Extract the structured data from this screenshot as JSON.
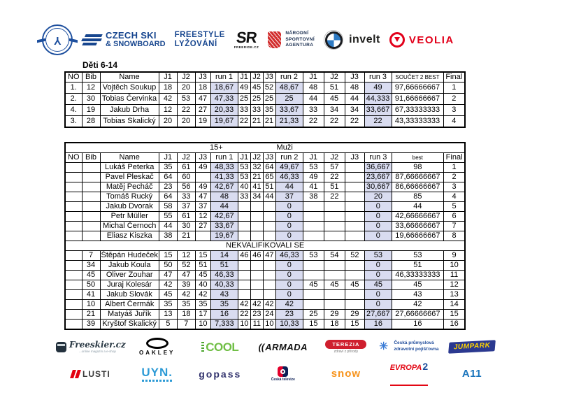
{
  "colors": {
    "highlight": "#d9dcf0",
    "navy": "#17468f",
    "veolia_red": "#e2001a"
  },
  "top": {
    "czech_ski": {
      "line1": "CZECH SKI",
      "line2": "& SNOWBOARD"
    },
    "freestyle": {
      "line1": "FREESTYLE",
      "line2": "LYŽOVÁNÍ"
    },
    "sr": {
      "text": "SR",
      "sub": "FREERIDE.CZ"
    },
    "nsa": {
      "line1": "NÁRODNÍ",
      "line2": "SPORTOVNÍ",
      "line3": "AGENTURA"
    },
    "invelt": {
      "text": "invelt"
    },
    "veolia": {
      "text": "VEOLIA"
    }
  },
  "table1": {
    "title": "Děti 6-14",
    "headers": [
      "NO",
      "Bib",
      "Name",
      "J1",
      "J2",
      "J3",
      "run 1",
      "J1",
      "J2",
      "J3",
      "run 2",
      "J1",
      "J2",
      "J3",
      "run 3",
      "SOUČET 2 BEST",
      "Final"
    ],
    "rows": [
      [
        "1.",
        "12",
        "Vojtěch Soukup",
        "18",
        "20",
        "18",
        "18,67",
        "49",
        "45",
        "52",
        "48,67",
        "48",
        "51",
        "48",
        "49",
        "97,66666667",
        "1"
      ],
      [
        "2.",
        "30",
        "Tobias Červinka",
        "42",
        "53",
        "47",
        "47,33",
        "25",
        "25",
        "25",
        "25",
        "44",
        "45",
        "44",
        "44,333",
        "91,66666667",
        "2"
      ],
      [
        "4.",
        "19",
        "Jakub Drha",
        "12",
        "22",
        "27",
        "20,33",
        "33",
        "33",
        "35",
        "33,67",
        "33",
        "34",
        "34",
        "33,667",
        "67,33333333",
        "3"
      ],
      [
        "3.",
        "28",
        "Tobias Skalický",
        "20",
        "20",
        "19",
        "19,67",
        "22",
        "21",
        "21",
        "21,33",
        "22",
        "22",
        "22",
        "22",
        "43,33333333",
        "4"
      ]
    ]
  },
  "table2": {
    "title": "Muži",
    "age": "15+",
    "headers": [
      "NO",
      "Bib",
      "Name",
      "J1",
      "J2",
      "J3",
      "run 1",
      "J1",
      "J2",
      "J3",
      "run 2",
      "J1",
      "J2",
      "J3",
      "run 3",
      "best",
      "Final"
    ],
    "sections": [
      {
        "rows": [
          [
            "",
            "",
            "Lukáš Peterka",
            "35",
            "61",
            "49",
            "48,33",
            "53",
            "32",
            "64",
            "49,67",
            "53",
            "57",
            "",
            "36,667",
            "98",
            "1"
          ],
          [
            "",
            "",
            "Pavel Pleskač",
            "64",
            "60",
            "",
            "41,33",
            "53",
            "21",
            "65",
            "46,33",
            "49",
            "22",
            "",
            "23,667",
            "87,66666667",
            "2"
          ],
          [
            "",
            "",
            "Matěj Pecháč",
            "23",
            "56",
            "49",
            "42,67",
            "40",
            "41",
            "51",
            "44",
            "41",
            "51",
            "",
            "30,667",
            "86,66666667",
            "3"
          ],
          [
            "",
            "",
            "Tomáš Rucký",
            "64",
            "33",
            "47",
            "48",
            "33",
            "34",
            "44",
            "37",
            "38",
            "22",
            "",
            "20",
            "85",
            "4"
          ],
          [
            "",
            "",
            "Jakub Dvorak",
            "58",
            "37",
            "37",
            "44",
            "",
            "",
            "",
            "0",
            "",
            "",
            "",
            "0",
            "44",
            "5"
          ],
          [
            "",
            "",
            "Petr Müller",
            "55",
            "61",
            "12",
            "42,67",
            "",
            "",
            "",
            "0",
            "",
            "",
            "",
            "0",
            "42,66666667",
            "6"
          ],
          [
            "",
            "",
            "Michal Černoch",
            "44",
            "30",
            "27",
            "33,67",
            "",
            "",
            "",
            "0",
            "",
            "",
            "",
            "0",
            "33,66666667",
            "7"
          ],
          [
            "",
            "",
            "Eliasz Kiszka",
            "38",
            "21",
            "",
            "19,67",
            "",
            "",
            "",
            "0",
            "",
            "",
            "",
            "0",
            "19,66666667",
            "8"
          ]
        ]
      },
      {
        "separator": "NEKVALIFIKOVALI SE"
      },
      {
        "rows": [
          [
            "",
            "7",
            "Štěpán Hudeček",
            "15",
            "12",
            "15",
            "14",
            "46",
            "46",
            "47",
            "46,33",
            "53",
            "54",
            "52",
            "53",
            "53",
            "9"
          ],
          [
            "",
            "34",
            "Jakub Koula",
            "50",
            "52",
            "51",
            "51",
            "",
            "",
            "",
            "0",
            "",
            "",
            "",
            "0",
            "51",
            "10"
          ],
          [
            "",
            "45",
            "Oliver Zouhar",
            "47",
            "47",
            "45",
            "46,33",
            "",
            "",
            "",
            "0",
            "",
            "",
            "",
            "0",
            "46,33333333",
            "11"
          ],
          [
            "",
            "50",
            "Juraj Kolesár",
            "42",
            "39",
            "40",
            "40,33",
            "",
            "",
            "",
            "0",
            "45",
            "45",
            "45",
            "45",
            "45",
            "12"
          ],
          [
            "",
            "41",
            "Jakub Slovák",
            "45",
            "42",
            "42",
            "43",
            "",
            "",
            "",
            "0",
            "",
            "",
            "",
            "0",
            "43",
            "13"
          ],
          [
            "",
            "10",
            "Albert Čermák",
            "35",
            "35",
            "35",
            "35",
            "42",
            "42",
            "42",
            "42",
            "",
            "",
            "",
            "0",
            "42",
            "14"
          ],
          [
            "",
            "21",
            "Matyáš Juřík",
            "13",
            "18",
            "17",
            "16",
            "22",
            "23",
            "24",
            "23",
            "25",
            "29",
            "29",
            "27,667",
            "27,66666667",
            "15"
          ],
          [
            "",
            "39",
            "Kryštof Skalický",
            "5",
            "7",
            "10",
            "7,333",
            "10",
            "11",
            "10",
            "10,33",
            "15",
            "18",
            "15",
            "16",
            "16",
            "16"
          ]
        ]
      }
    ]
  },
  "footer": {
    "row1": [
      {
        "label": "Freeskier.cz",
        "tagline": "...online magazín a e-shop"
      },
      {
        "label": "OAKLEY"
      },
      {
        "label": "COOL"
      },
      {
        "label": "ARMADA",
        "mark": "(("
      },
      {
        "label": "TEREZIA",
        "tagline": "zdraví z přírody"
      },
      {
        "line1": "Česká průmyslová",
        "line2": "zdravotní pojišťovna"
      },
      {
        "label": "JUMPARK"
      }
    ],
    "row2": [
      {
        "label": "LUSTI"
      },
      {
        "label": "UYN."
      },
      {
        "label": "gopass"
      },
      {
        "label": "Česká televize"
      },
      {
        "label": "snow"
      },
      {
        "label": "EVROPA",
        "num": "2"
      },
      {
        "label": "A11"
      }
    ]
  }
}
